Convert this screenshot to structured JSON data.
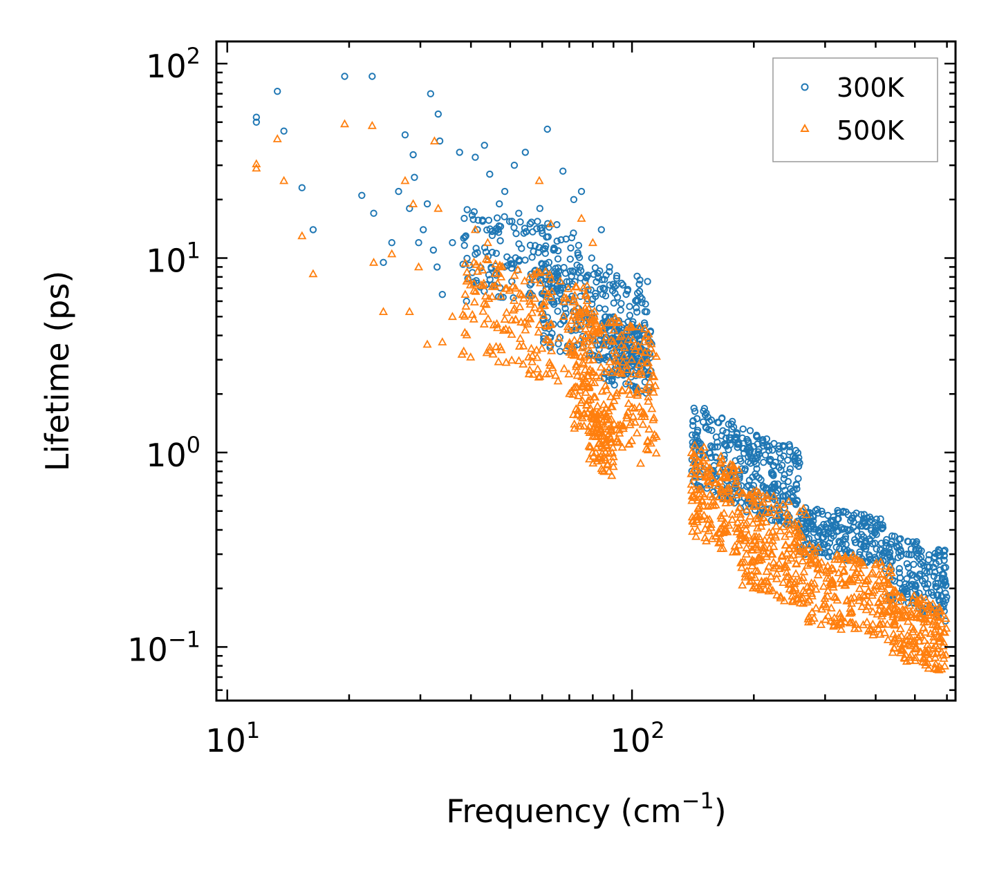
{
  "chart_data": {
    "type": "scatter",
    "xscale": "log",
    "yscale": "log",
    "xlim": [
      9.4,
      630
    ],
    "ylim": [
      0.053,
      130
    ],
    "xlabel": "Frequency (cm",
    "xlabel_sup": "−1",
    "xlabel_close": ")",
    "ylabel": "Lifetime (ps)",
    "x_ticks": [
      {
        "value": 10,
        "base": "10",
        "exp": "1"
      },
      {
        "value": 100,
        "base": "10",
        "exp": "2"
      }
    ],
    "y_ticks": [
      {
        "value": 0.1,
        "base": "10",
        "exp": "−1"
      },
      {
        "value": 1,
        "base": "10",
        "exp": "0"
      },
      {
        "value": 10,
        "base": "10",
        "exp": "1"
      },
      {
        "value": 100,
        "base": "10",
        "exp": "2"
      }
    ],
    "legend": {
      "position": "top-right",
      "entries": [
        "300K",
        "500K"
      ]
    },
    "series": [
      {
        "name": "300K",
        "marker": "circle",
        "color": "#1f77b4",
        "points": [
          [
            11.8,
            50
          ],
          [
            11.8,
            53
          ],
          [
            13.3,
            72
          ],
          [
            13.8,
            45
          ],
          [
            15.3,
            23
          ],
          [
            16.3,
            14
          ],
          [
            19.5,
            86
          ],
          [
            21.5,
            21
          ],
          [
            22.8,
            86
          ],
          [
            23,
            17
          ],
          [
            24.3,
            9.5
          ],
          [
            25.5,
            12
          ],
          [
            26.5,
            22
          ],
          [
            27.5,
            43
          ],
          [
            28.2,
            18
          ],
          [
            28.8,
            34
          ],
          [
            29,
            26
          ],
          [
            29.7,
            12
          ],
          [
            30.5,
            14
          ],
          [
            31.2,
            19
          ],
          [
            31.8,
            70
          ],
          [
            32.3,
            11
          ],
          [
            33,
            9
          ],
          [
            33.2,
            55
          ],
          [
            33.5,
            40
          ],
          [
            34,
            6.5
          ],
          [
            36,
            12
          ],
          [
            37.5,
            35
          ],
          [
            38.5,
            16
          ],
          [
            39,
            6
          ],
          [
            41,
            33
          ],
          [
            41.5,
            14
          ],
          [
            43.2,
            38
          ],
          [
            44.5,
            27
          ],
          [
            47,
            19
          ],
          [
            48.5,
            22
          ],
          [
            51.2,
            30
          ],
          [
            52.5,
            17
          ],
          [
            54.5,
            35
          ],
          [
            56,
            15
          ],
          [
            59.2,
            18
          ],
          [
            61.8,
            46
          ],
          [
            64,
            11
          ],
          [
            67.5,
            28
          ],
          [
            71.8,
            20
          ],
          [
            75,
            22
          ],
          [
            79.5,
            10
          ],
          [
            84,
            14
          ],
          [
            88,
            9
          ]
        ],
        "bands": [
          [
            38,
            75,
            [
              6,
              16
            ],
            170
          ],
          [
            60,
            110,
            [
              3,
              9
            ],
            240
          ],
          [
            85,
            112,
            [
              2.1,
              4.8
            ],
            150
          ],
          [
            140,
            185,
            [
              0.6,
              1.6
            ],
            160
          ],
          [
            185,
            260,
            [
              0.45,
              1.2
            ],
            200
          ],
          [
            260,
            420,
            [
              0.28,
              0.5
            ],
            220
          ],
          [
            420,
            600,
            [
              0.15,
              0.35
            ],
            180
          ]
        ]
      },
      {
        "name": "500K",
        "marker": "triangle",
        "color": "#ff7f0e",
        "points": [
          [
            11.8,
            29
          ],
          [
            11.8,
            30.5
          ],
          [
            13.3,
            41
          ],
          [
            13.8,
            25
          ],
          [
            15.3,
            13
          ],
          [
            16.3,
            8.3
          ],
          [
            19.5,
            49
          ],
          [
            22.8,
            48
          ],
          [
            23,
            9.5
          ],
          [
            24.3,
            5.3
          ],
          [
            25.5,
            10.5
          ],
          [
            27.5,
            25
          ],
          [
            28.2,
            5.3
          ],
          [
            28.8,
            19
          ],
          [
            29.7,
            9
          ],
          [
            31.2,
            3.6
          ],
          [
            32.5,
            40
          ],
          [
            33.2,
            18
          ],
          [
            34,
            3.7
          ],
          [
            36,
            5
          ],
          [
            38,
            3.2
          ],
          [
            41,
            14
          ],
          [
            44,
            12
          ],
          [
            47,
            9
          ],
          [
            59,
            25
          ],
          [
            63,
            15
          ],
          [
            75,
            16
          ],
          [
            80,
            12
          ],
          [
            90,
            0.95
          ],
          [
            105,
            0.88
          ]
        ],
        "bands": [
          [
            38,
            80,
            [
              2.5,
              9
            ],
            200
          ],
          [
            70,
            115,
            [
              1.1,
              5
            ],
            260
          ],
          [
            78,
            90,
            [
              0.8,
              1.6
            ],
            80
          ],
          [
            140,
            185,
            [
              0.33,
              1.0
            ],
            170
          ],
          [
            185,
            270,
            [
              0.18,
              0.6
            ],
            220
          ],
          [
            270,
            440,
            [
              0.12,
              0.3
            ],
            220
          ],
          [
            440,
            600,
            [
              0.08,
              0.18
            ],
            180
          ]
        ]
      }
    ]
  }
}
